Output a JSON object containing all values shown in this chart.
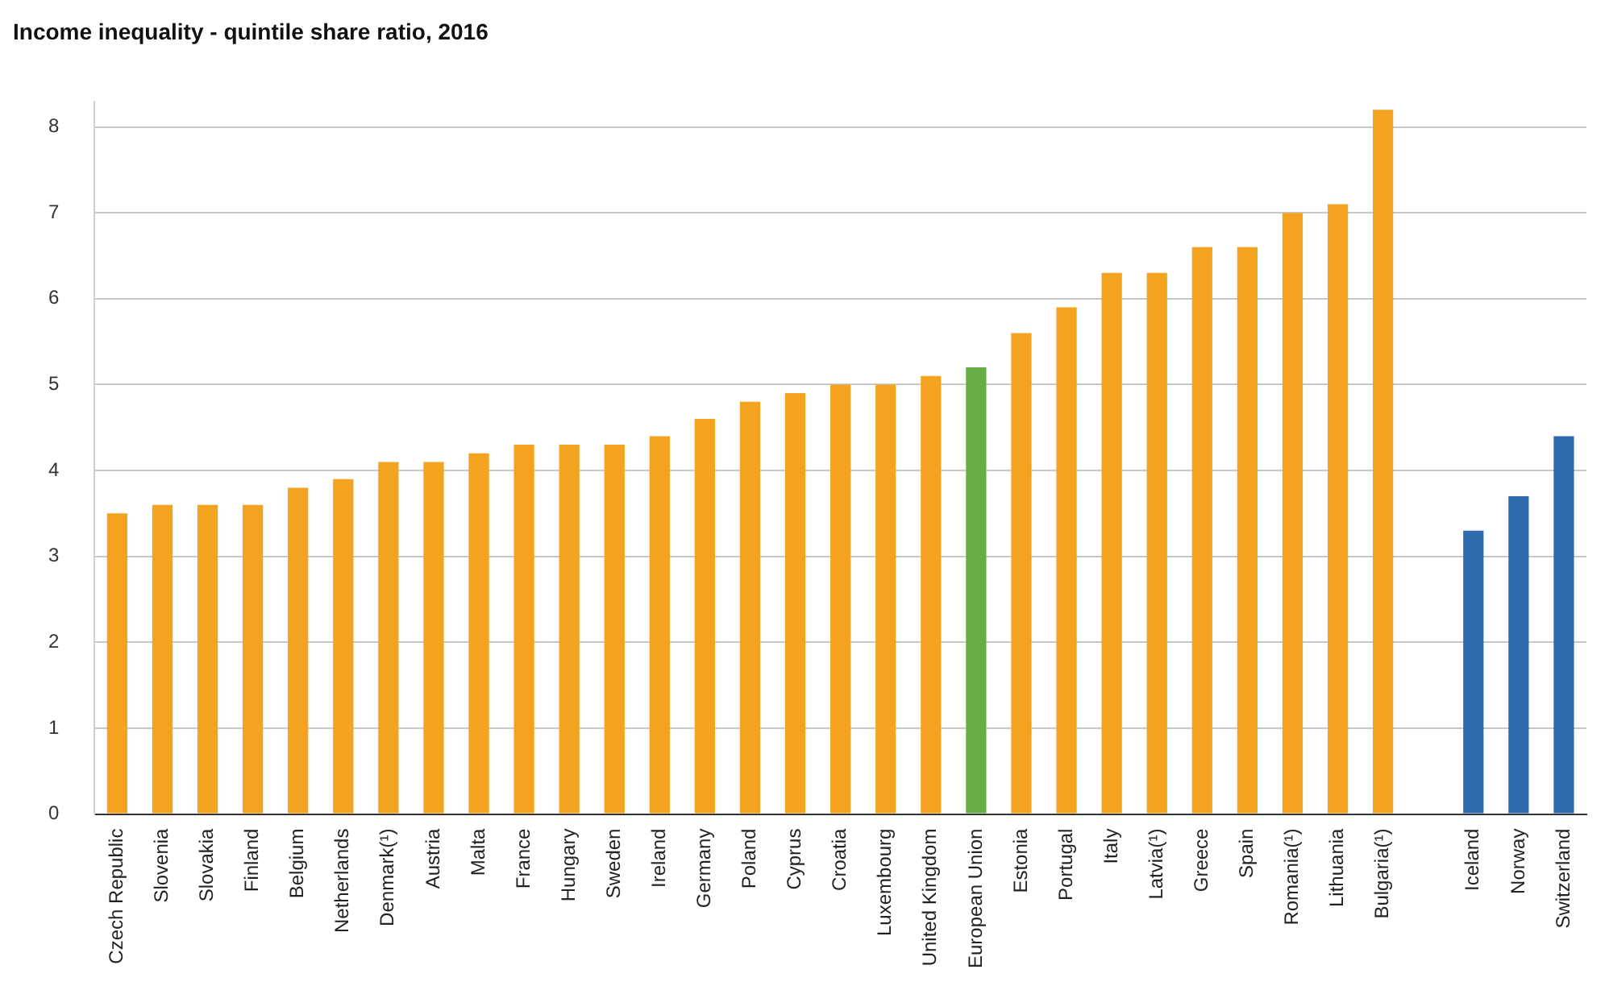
{
  "chart_data": {
    "type": "bar",
    "title": "Income inequality - quintile share ratio, 2016",
    "categories": [
      "Czech Republic",
      "Slovenia",
      "Slovakia",
      "Finland",
      "Belgium",
      "Netherlands",
      "Denmark(¹)",
      "Austria",
      "Malta",
      "France",
      "Hungary",
      "Sweden",
      "Ireland",
      "Germany",
      "Poland",
      "Cyprus",
      "Croatia",
      "Luxembourg",
      "United Kingdom",
      "European Union",
      "Estonia",
      "Portugal",
      "Italy",
      "Latvia(¹)",
      "Greece",
      "Spain",
      "Romania(¹)",
      "Lithuania",
      "Bulgaria(¹)",
      null,
      "Iceland",
      "Norway",
      "Switzerland"
    ],
    "values": [
      3.5,
      3.6,
      3.6,
      3.6,
      3.8,
      3.9,
      4.1,
      4.1,
      4.2,
      4.3,
      4.3,
      4.3,
      4.4,
      4.6,
      4.8,
      4.9,
      5.0,
      5.0,
      5.1,
      5.2,
      5.6,
      5.9,
      6.3,
      6.3,
      6.6,
      6.6,
      7.0,
      7.1,
      8.2,
      null,
      3.3,
      3.7,
      4.4
    ],
    "colors": [
      "#f4a321",
      "#f4a321",
      "#f4a321",
      "#f4a321",
      "#f4a321",
      "#f4a321",
      "#f4a321",
      "#f4a321",
      "#f4a321",
      "#f4a321",
      "#f4a321",
      "#f4a321",
      "#f4a321",
      "#f4a321",
      "#f4a321",
      "#f4a321",
      "#f4a321",
      "#f4a321",
      "#f4a321",
      "#66ad45",
      "#f4a321",
      "#f4a321",
      "#f4a321",
      "#f4a321",
      "#f4a321",
      "#f4a321",
      "#f4a321",
      "#f4a321",
      "#f4a321",
      "#ffffff",
      "#2f6aad",
      "#2f6aad",
      "#2f6aad"
    ],
    "ylim": [
      0,
      8.3
    ],
    "yticks": [
      0,
      1,
      2,
      3,
      4,
      5,
      6,
      7,
      8
    ],
    "grid": "y"
  }
}
